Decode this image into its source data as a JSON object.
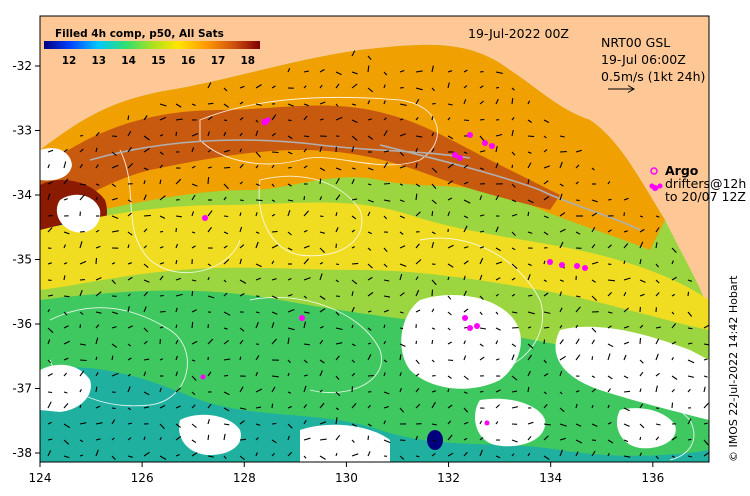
{
  "map": {
    "colorbar_title": "Filled 4h comp, p50, All Sats",
    "colorbar_ticks": [
      "12",
      "13",
      "14",
      "15",
      "16",
      "17",
      "18"
    ],
    "date_label": "19-Jul-2022 00Z",
    "current_label_line1": "NRT00 GSL",
    "current_label_line2": "19-Jul 06:00Z",
    "current_label_line3": "0.5m/s (1kt 24h)",
    "argo_label": "Argo",
    "drifters_label_line1": "drifters@12h",
    "drifters_label_line2": "to 20/07 12Z",
    "credit": "© IMOS 22-Jul-2022 14:42 Hobart",
    "x_ticks": [
      "124",
      "126",
      "128",
      "130",
      "132",
      "134",
      "136"
    ],
    "y_ticks": [
      "-32",
      "-33",
      "-34",
      "-35",
      "-36",
      "-37",
      "-38"
    ],
    "colors": {
      "land": "#fdc896",
      "missing": "#ffffff",
      "argo": "#ff00ff"
    }
  }
}
